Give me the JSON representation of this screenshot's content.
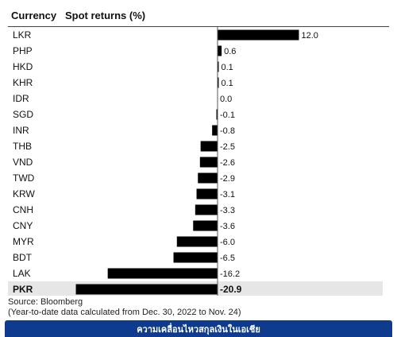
{
  "header": {
    "currency_label": "Currency",
    "returns_label": "Spot returns (%)"
  },
  "chart_data": {
    "type": "bar",
    "orientation": "horizontal",
    "categories": [
      "LKR",
      "PHP",
      "HKD",
      "KHR",
      "IDR",
      "SGD",
      "INR",
      "THB",
      "VND",
      "TWD",
      "KRW",
      "CNH",
      "CNY",
      "MYR",
      "BDT",
      "LAK",
      "PKR"
    ],
    "values": [
      12.0,
      0.6,
      0.1,
      0.1,
      0.0,
      -0.1,
      -0.8,
      -2.5,
      -2.6,
      -2.9,
      -3.1,
      -3.3,
      -3.6,
      -6.0,
      -6.5,
      -16.2,
      -20.9
    ],
    "value_labels": [
      "12.0",
      "0.6",
      "0.1",
      "0.1",
      "0.0",
      "-0.1",
      "-0.8",
      "-2.5",
      "-2.6",
      "-2.9",
      "-3.1",
      "-3.3",
      "-3.6",
      "-6.0",
      "-6.5",
      "-16.2",
      "-20.9"
    ],
    "highlighted": "PKR",
    "xlim": [
      -21,
      13
    ],
    "bar_color": "#000000",
    "highlight_row_color": "#e6e6e6"
  },
  "source": {
    "line1": "Source: Bloomberg",
    "line2": "(Year-to-date data calculated from Dec. 30, 2022 to Nov. 24)"
  },
  "footer": {
    "caption": "ความเคลื่อนไหวสกุลเงินในเอเชีย",
    "color": "#0f3b8f"
  }
}
